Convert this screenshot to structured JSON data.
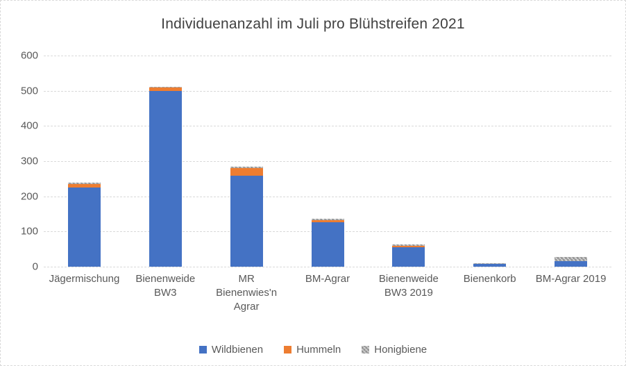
{
  "chart_data": {
    "type": "bar",
    "stacked": true,
    "title": "Individuenanzahl im Juli pro Blühstreifen 2021",
    "categories": [
      "Jägermischung",
      "Bienenweide BW3",
      "MR Bienenwies'n Agrar",
      "BM-Agrar",
      "Bienenweide BW3 2019",
      "Bienenkorb",
      "BM-Agrar 2019"
    ],
    "series": [
      {
        "name": "Wildbienen",
        "color": "#4472C4",
        "values": [
          226,
          500,
          258,
          127,
          56,
          8,
          15
        ]
      },
      {
        "name": "Hummeln",
        "color": "#ED7D31",
        "values": [
          9,
          9,
          22,
          5,
          4,
          0,
          0
        ]
      },
      {
        "name": "Honigbiene",
        "color": "#A5A5A5",
        "values": [
          3,
          2,
          4,
          4,
          3,
          2,
          13
        ]
      }
    ],
    "totals": [
      238,
      511,
      284,
      136,
      63,
      10,
      28
    ],
    "xlabel": "",
    "ylabel": "",
    "ylim": [
      0,
      600
    ],
    "ytick_step": 100,
    "ytick_labels": [
      "0",
      "100",
      "200",
      "300",
      "400",
      "500",
      "600"
    ],
    "grid": "horizontal-dashed",
    "legend_position": "bottom",
    "colors": {
      "gridline": "#d9d9d9",
      "text": "#595959",
      "title_text": "#404040",
      "background": "#ffffff"
    }
  }
}
